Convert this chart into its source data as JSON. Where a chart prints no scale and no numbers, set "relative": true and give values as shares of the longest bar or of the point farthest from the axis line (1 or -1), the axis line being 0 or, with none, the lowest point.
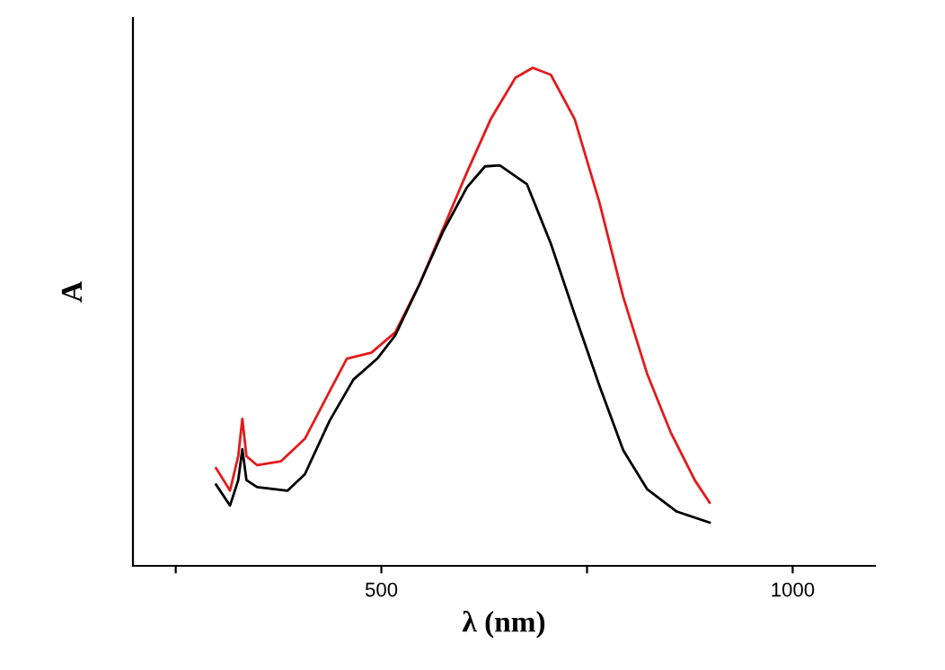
{
  "chart_data": {
    "type": "line",
    "relative": true,
    "xlabel": "λ (nm)",
    "ylabel": "A",
    "xlim": [
      198,
      1100
    ],
    "xticks": [
      {
        "value": 250,
        "label": null
      },
      500,
      {
        "value": 750,
        "label": null
      },
      1000
    ],
    "grid": false,
    "legend": false,
    "marker": "none",
    "line_style": "solid",
    "series": [
      {
        "color": "#e31a1c",
        "x": [
          299,
          316,
          326,
          331,
          336,
          349,
          378,
          407,
          437,
          458,
          488,
          517,
          546,
          575,
          604,
          633,
          663,
          684,
          706,
          735,
          765,
          794,
          823,
          852,
          881,
          899
        ],
        "values": [
          0.196,
          0.151,
          0.22,
          0.295,
          0.22,
          0.202,
          0.21,
          0.255,
          0.35,
          0.416,
          0.428,
          0.469,
          0.564,
          0.677,
          0.79,
          0.897,
          0.98,
          1.0,
          0.986,
          0.897,
          0.73,
          0.54,
          0.386,
          0.267,
          0.172,
          0.127
        ]
      },
      {
        "color": "#000000",
        "x": [
          299,
          316,
          326,
          331,
          336,
          349,
          386,
          407,
          437,
          466,
          495,
          517,
          546,
          575,
          604,
          626,
          644,
          677,
          706,
          735,
          765,
          794,
          823,
          859,
          899
        ],
        "values": [
          0.163,
          0.121,
          0.172,
          0.234,
          0.172,
          0.158,
          0.151,
          0.184,
          0.291,
          0.374,
          0.416,
          0.463,
          0.564,
          0.671,
          0.76,
          0.802,
          0.804,
          0.766,
          0.647,
          0.505,
          0.362,
          0.232,
          0.154,
          0.109,
          0.087
        ]
      }
    ]
  }
}
